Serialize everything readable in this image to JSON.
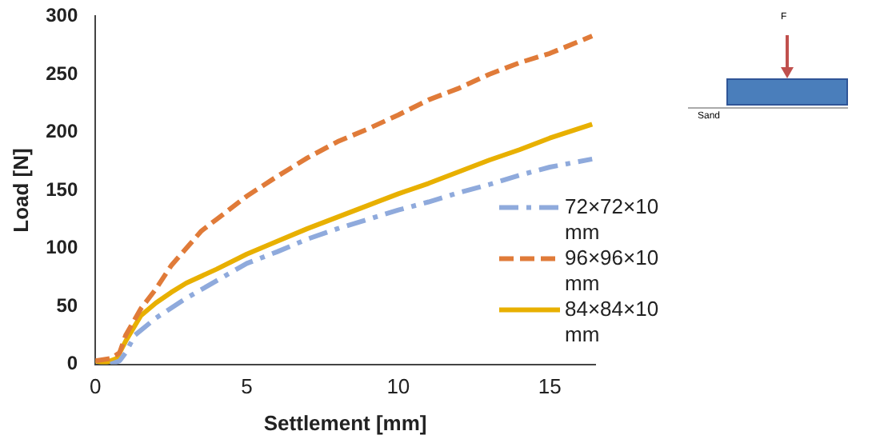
{
  "chart_data": {
    "type": "line",
    "xlabel": "Settlement [mm]",
    "ylabel": "Load [N]",
    "xlim": [
      0,
      16.5
    ],
    "xticks": [
      0,
      5,
      10,
      15
    ],
    "ylim": [
      0,
      300
    ],
    "yticks": [
      0,
      50,
      100,
      150,
      200,
      250,
      300
    ],
    "grid": false,
    "legend": "bottom right",
    "annotations": [
      "F",
      "Sand"
    ],
    "series": [
      {
        "name": "72×72×10 mm",
        "color": "#8faadc",
        "line_style": "dashdot",
        "x": [
          0.5,
          0.8,
          1,
          1.3,
          2,
          3,
          4,
          5,
          6,
          7,
          8,
          9,
          10,
          11,
          12,
          13,
          14,
          15,
          16.4
        ],
        "values": [
          0,
          3,
          10,
          25,
          40,
          57,
          72,
          87,
          97,
          108,
          117,
          125,
          133,
          140,
          148,
          155,
          163,
          170,
          177
        ]
      },
      {
        "name": "96×96×10 mm",
        "color": "#e07b39",
        "line_style": "dashed",
        "x": [
          0,
          0.5,
          0.8,
          1,
          1.5,
          2,
          2.5,
          3,
          3.5,
          4,
          5,
          6,
          7,
          8,
          9,
          10,
          11,
          12,
          13,
          14,
          15,
          16.4
        ],
        "values": [
          3,
          5,
          10,
          25,
          48,
          65,
          85,
          100,
          115,
          125,
          145,
          162,
          178,
          192,
          203,
          215,
          228,
          238,
          250,
          260,
          268,
          283
        ]
      },
      {
        "name": "84×84×10 mm",
        "color": "#e8b000",
        "line_style": "solid",
        "x": [
          0,
          0.3,
          0.7,
          1,
          1.5,
          2,
          2.5,
          3,
          4,
          5,
          6,
          7,
          8,
          9,
          10,
          11,
          12,
          13,
          14,
          15,
          16.4
        ],
        "values": [
          3,
          1,
          5,
          20,
          42,
          53,
          62,
          70,
          82,
          95,
          106,
          117,
          127,
          137,
          147,
          156,
          166,
          176,
          185,
          195,
          207
        ]
      }
    ]
  }
}
